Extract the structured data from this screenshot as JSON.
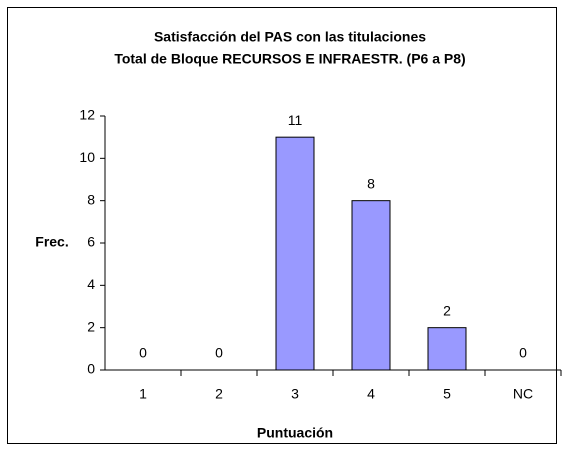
{
  "chart_data": {
    "type": "bar",
    "title": "Satisfacción del PAS con las titulaciones",
    "subtitle": "Total de Bloque RECURSOS E INFRAESTR. (P6 a P8)",
    "x_label": "Puntuación",
    "y_label": "Frec.",
    "categories": [
      "1",
      "2",
      "3",
      "4",
      "5",
      "NC"
    ],
    "values": [
      0,
      0,
      11,
      8,
      2,
      0
    ],
    "color": "#9999ff",
    "ylim": [
      0,
      12
    ],
    "yticks": [
      0,
      2,
      4,
      6,
      8,
      10,
      12
    ],
    "grid": false
  }
}
